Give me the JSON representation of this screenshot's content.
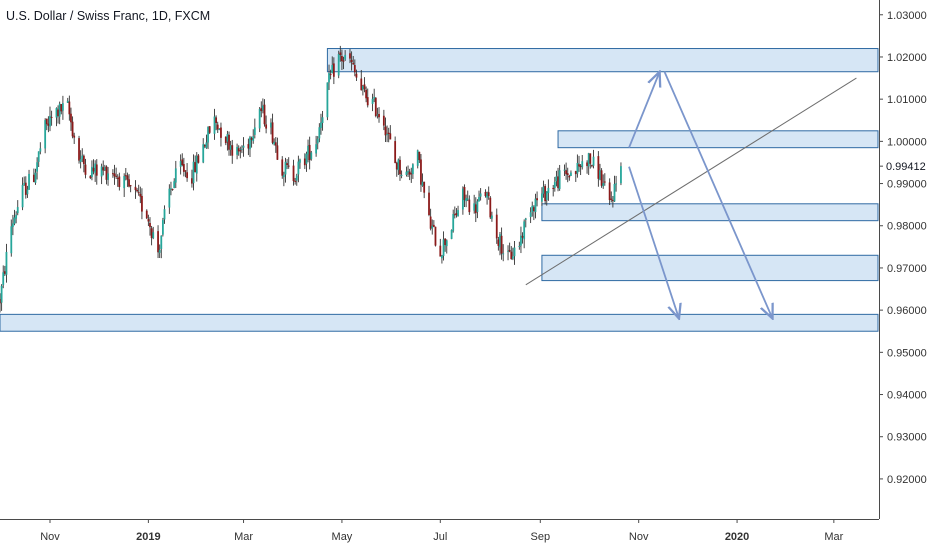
{
  "chart_data": {
    "type": "candlestick",
    "title": "U.S. Dollar / Swiss Franc, 1D, FXCM",
    "y_axis": {
      "side": "right",
      "ylim": [
        0.9105,
        1.0335
      ],
      "ticks": [
        "1.03000",
        "1.02000",
        "1.01000",
        "1.00000",
        "0.99000",
        "0.98000",
        "0.97000",
        "0.96000",
        "0.95000",
        "0.94000",
        "0.93000",
        "0.92000"
      ],
      "tick_values": [
        1.03,
        1.02,
        1.01,
        1.0,
        0.99,
        0.98,
        0.97,
        0.96,
        0.95,
        0.94,
        0.93,
        0.92
      ],
      "last_price_label": "0.99412",
      "last_price": 0.99412
    },
    "x_axis": {
      "xlim": [
        "2018-10-01",
        "2020-03-29"
      ],
      "ticks": [
        {
          "label": "Nov",
          "date": "2018-11-01",
          "bold": false
        },
        {
          "label": "2019",
          "date": "2019-01-01",
          "bold": true
        },
        {
          "label": "Mar",
          "date": "2019-03-01",
          "bold": false
        },
        {
          "label": "May",
          "date": "2019-05-01",
          "bold": false
        },
        {
          "label": "Jul",
          "date": "2019-07-01",
          "bold": false
        },
        {
          "label": "Sep",
          "date": "2019-09-01",
          "bold": false
        },
        {
          "label": "Nov",
          "date": "2019-11-01",
          "bold": false
        },
        {
          "label": "2020",
          "date": "2020-01-01",
          "bold": true
        },
        {
          "label": "Mar",
          "date": "2020-03-01",
          "bold": false
        }
      ]
    },
    "grid": false,
    "colors": {
      "up": "#26a69a",
      "down": "#8b1a1a",
      "zone_fill": "#cfe2f3",
      "zone_border": "#2f6aa3",
      "arrow": "#7b96cc",
      "trendline": "#6d6d6d",
      "axis": "#4a4a4a"
    },
    "price_anchors": [
      [
        "2018-10-01",
        0.9625
      ],
      [
        "2018-10-08",
        0.98
      ],
      [
        "2018-10-15",
        0.988
      ],
      [
        "2018-10-22",
        0.992
      ],
      [
        "2018-10-29",
        1.003
      ],
      [
        "2018-11-05",
        1.007
      ],
      [
        "2018-11-12",
        1.008
      ],
      [
        "2018-11-19",
        0.996
      ],
      [
        "2018-11-26",
        0.993
      ],
      [
        "2018-12-03",
        0.993
      ],
      [
        "2018-12-10",
        0.993
      ],
      [
        "2018-12-17",
        0.99
      ],
      [
        "2018-12-24",
        0.987
      ],
      [
        "2018-12-31",
        0.983
      ],
      [
        "2019-01-07",
        0.974
      ],
      [
        "2019-01-14",
        0.988
      ],
      [
        "2019-01-21",
        0.994
      ],
      [
        "2019-01-28",
        0.992
      ],
      [
        "2019-02-04",
        0.999
      ],
      [
        "2019-02-11",
        1.005
      ],
      [
        "2019-02-18",
        1.001
      ],
      [
        "2019-02-25",
        0.997
      ],
      [
        "2019-03-04",
        1.0
      ],
      [
        "2019-03-11",
        1.008
      ],
      [
        "2019-03-18",
        1.003
      ],
      [
        "2019-03-25",
        0.994
      ],
      [
        "2019-04-01",
        0.992
      ],
      [
        "2019-04-08",
        0.996
      ],
      [
        "2019-04-15",
        1.0
      ],
      [
        "2019-04-22",
        1.013
      ],
      [
        "2019-04-29",
        1.02
      ],
      [
        "2019-05-06",
        1.019
      ],
      [
        "2019-05-13",
        1.012
      ],
      [
        "2019-05-20",
        1.009
      ],
      [
        "2019-05-27",
        1.005
      ],
      [
        "2019-06-03",
        0.995
      ],
      [
        "2019-06-10",
        0.992
      ],
      [
        "2019-06-17",
        0.996
      ],
      [
        "2019-06-24",
        0.981
      ],
      [
        "2019-07-01",
        0.974
      ],
      [
        "2019-07-08",
        0.98
      ],
      [
        "2019-07-15",
        0.987
      ],
      [
        "2019-07-22",
        0.984
      ],
      [
        "2019-07-29",
        0.988
      ],
      [
        "2019-08-05",
        0.978
      ],
      [
        "2019-08-12",
        0.972
      ],
      [
        "2019-08-19",
        0.976
      ],
      [
        "2019-08-26",
        0.985
      ],
      [
        "2019-09-02",
        0.987
      ],
      [
        "2019-09-09",
        0.99
      ],
      [
        "2019-09-16",
        0.992
      ],
      [
        "2019-09-23",
        0.993
      ],
      [
        "2019-09-30",
        0.996
      ],
      [
        "2019-10-07",
        0.993
      ],
      [
        "2019-10-14",
        0.985
      ],
      [
        "2019-10-21",
        0.9941
      ]
    ],
    "zones": [
      {
        "from": "2019-04-22",
        "to": "2020-03-29",
        "low": 1.0165,
        "high": 1.022
      },
      {
        "from": "2019-09-12",
        "to": "2020-03-29",
        "low": 0.9985,
        "high": 1.0025
      },
      {
        "from": "2019-09-02",
        "to": "2020-03-29",
        "low": 0.9812,
        "high": 0.9852
      },
      {
        "from": "2019-09-02",
        "to": "2020-03-29",
        "low": 0.967,
        "high": 0.973
      },
      {
        "from": "2018-10-01",
        "to": "2020-03-29",
        "low": 0.955,
        "high": 0.959
      }
    ],
    "trendline": {
      "from": [
        "2019-08-23",
        0.966
      ],
      "to": [
        "2020-03-15",
        1.015
      ]
    },
    "arrows": [
      {
        "from": [
          "2019-10-26",
          0.9985
        ],
        "to": [
          "2019-11-14",
          1.0165
        ]
      },
      {
        "from": [
          "2019-11-17",
          1.0165
        ],
        "to": [
          "2020-01-23",
          0.958
        ]
      },
      {
        "from": [
          "2019-10-26",
          0.994
        ],
        "to": [
          "2019-11-26",
          0.958
        ]
      }
    ]
  }
}
